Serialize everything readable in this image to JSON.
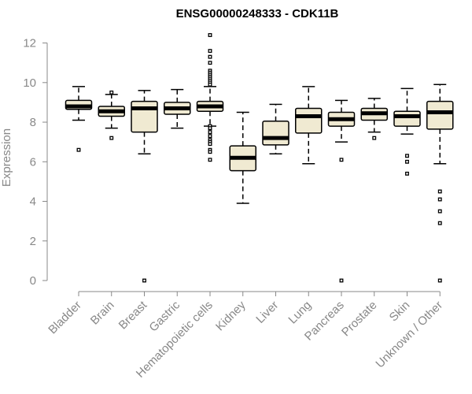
{
  "chart_data": {
    "type": "boxplot",
    "title": "ENSG00000248333 - CDK11B",
    "xlabel": "",
    "ylabel": "Expression",
    "ylim": [
      0,
      12.5
    ],
    "yticks": [
      0,
      2,
      4,
      6,
      8,
      10,
      12
    ],
    "grid": false,
    "box_fill": "#f0ead2",
    "box_stroke": "#000000",
    "median_color": "#000000",
    "axis_color": "#888888",
    "categories": [
      "Bladder",
      "Brain",
      "Breast",
      "Gastric",
      "Hematopoietic cells",
      "Kidney",
      "Liver",
      "Lung",
      "Pancreas",
      "Prostate",
      "Skin",
      "Unknown / Other"
    ],
    "boxes": [
      {
        "category": "Bladder",
        "whisker_low": 8.1,
        "q1": 8.65,
        "median": 8.8,
        "q3": 9.1,
        "whisker_high": 9.8,
        "outliers": [
          6.6
        ]
      },
      {
        "category": "Brain",
        "whisker_low": 7.7,
        "q1": 8.3,
        "median": 8.55,
        "q3": 8.8,
        "whisker_high": 9.4,
        "outliers": [
          7.2,
          9.5
        ]
      },
      {
        "category": "Breast",
        "whisker_low": 6.4,
        "q1": 7.5,
        "median": 8.7,
        "q3": 9.05,
        "whisker_high": 9.6,
        "outliers": [
          0
        ]
      },
      {
        "category": "Gastric",
        "whisker_low": 7.7,
        "q1": 8.4,
        "median": 8.7,
        "q3": 9.0,
        "whisker_high": 9.65,
        "outliers": []
      },
      {
        "category": "Hematopoietic cells",
        "whisker_low": 7.8,
        "q1": 8.55,
        "median": 8.8,
        "q3": 9.05,
        "whisker_high": 9.8,
        "outliers": [
          12.4,
          11.6,
          11.3,
          11.0,
          10.6,
          10.5,
          10.4,
          10.3,
          10.2,
          10.1,
          10.0,
          9.9,
          7.8,
          7.7,
          7.5,
          7.3,
          7.1,
          7.0,
          6.9,
          6.6,
          6.5,
          6.1
        ]
      },
      {
        "category": "Kidney",
        "whisker_low": 3.9,
        "q1": 5.55,
        "median": 6.2,
        "q3": 6.8,
        "whisker_high": 8.5,
        "outliers": []
      },
      {
        "category": "Liver",
        "whisker_low": 6.4,
        "q1": 6.85,
        "median": 7.2,
        "q3": 8.05,
        "whisker_high": 8.9,
        "outliers": []
      },
      {
        "category": "Lung",
        "whisker_low": 5.9,
        "q1": 7.45,
        "median": 8.3,
        "q3": 8.7,
        "whisker_high": 9.8,
        "outliers": []
      },
      {
        "category": "Pancreas",
        "whisker_low": 7.0,
        "q1": 7.8,
        "median": 8.15,
        "q3": 8.5,
        "whisker_high": 9.1,
        "outliers": [
          6.1,
          0
        ]
      },
      {
        "category": "Prostate",
        "whisker_low": 7.5,
        "q1": 8.1,
        "median": 8.45,
        "q3": 8.7,
        "whisker_high": 9.2,
        "outliers": [
          7.2
        ]
      },
      {
        "category": "Skin",
        "whisker_low": 7.4,
        "q1": 7.8,
        "median": 8.3,
        "q3": 8.55,
        "whisker_high": 9.7,
        "outliers": [
          6.3,
          6.0,
          5.4
        ]
      },
      {
        "category": "Unknown / Other",
        "whisker_low": 5.9,
        "q1": 7.65,
        "median": 8.5,
        "q3": 9.05,
        "whisker_high": 9.9,
        "outliers": [
          4.5,
          4.1,
          3.5,
          2.9,
          0
        ]
      }
    ]
  }
}
